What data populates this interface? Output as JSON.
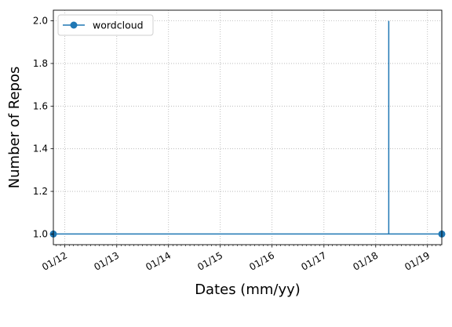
{
  "chart_data": {
    "type": "line",
    "xlabel": "Dates (mm/yy)",
    "ylabel": "Number of Repos",
    "x_tick_labels": [
      "01/12",
      "01/13",
      "01/14",
      "01/15",
      "01/16",
      "01/17",
      "01/18",
      "01/19"
    ],
    "y_tick_labels": [
      "1.0",
      "1.2",
      "1.4",
      "1.6",
      "1.8",
      "2.0"
    ],
    "xlim": [
      "2011-10-12",
      "2019-04-12"
    ],
    "ylim": [
      0.95,
      2.05
    ],
    "grid": true,
    "legend_position": "upper-left",
    "series": [
      {
        "name": "wordcloud",
        "color": "#1f77b4",
        "marker": "circle",
        "points": [
          {
            "x": "2011-10-12",
            "y": 1
          },
          {
            "x": "2018-04-03",
            "y": 1
          },
          {
            "x": "2018-04-03",
            "y": 2
          },
          {
            "x": "2018-04-03",
            "y": 1
          },
          {
            "x": "2019-04-12",
            "y": 1
          }
        ],
        "marker_points": [
          {
            "x": "2011-10-12",
            "y": 1
          },
          {
            "x": "2019-04-12",
            "y": 1
          }
        ]
      }
    ]
  }
}
